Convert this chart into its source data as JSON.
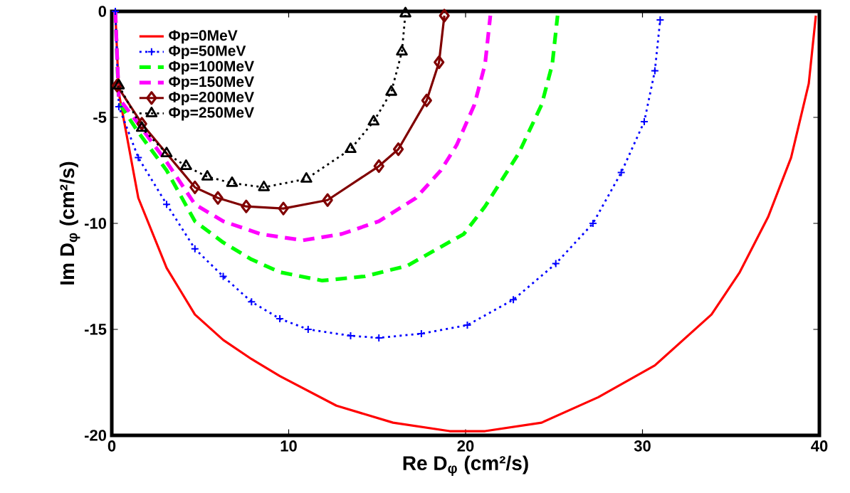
{
  "chart_data": {
    "type": "line",
    "xlabel": "Re D$_{φ}$ (cm²/s)",
    "ylabel": "Im D$_{φ}$ (cm²/s)",
    "xlim": [
      0,
      40
    ],
    "ylim": [
      -20,
      0
    ],
    "xticks": [
      0,
      10,
      20,
      30,
      40
    ],
    "yticks": [
      -20,
      -15,
      -10,
      -5,
      0
    ],
    "grid": false,
    "legend": "top left",
    "series": [
      {
        "name": "Φp=0MeV",
        "color": "#ff0000",
        "line_style": "solid",
        "marker": "none",
        "x": [
          0.2,
          0.4,
          1.5,
          3.1,
          4.7,
          6.3,
          7.9,
          9.5,
          12.7,
          15.9,
          19.1,
          21.1,
          24.3,
          27.5,
          30.7,
          33.9,
          35.5,
          37.1,
          38.4,
          39.4,
          39.8
        ],
        "values": [
          0,
          -3.85,
          -8.8,
          -12.1,
          -14.3,
          -15.5,
          -16.4,
          -17.2,
          -18.6,
          -19.4,
          -19.8,
          -19.8,
          -19.4,
          -18.2,
          -16.7,
          -14.3,
          -12.3,
          -9.7,
          -6.9,
          -3.4,
          -0.2
        ]
      },
      {
        "name": "Φp=50MeV",
        "color": "#0000ff",
        "line_style": "dotted",
        "marker": "cross",
        "x": [
          0.2,
          0.4,
          1.5,
          3.1,
          4.7,
          6.3,
          7.9,
          9.5,
          11.1,
          13.5,
          15.1,
          17.5,
          20.1,
          22.7,
          25.1,
          27.2,
          28.8,
          30.1,
          30.7,
          31.0
        ],
        "values": [
          0,
          -4.5,
          -6.9,
          -9.1,
          -11.2,
          -12.5,
          -13.7,
          -14.5,
          -15.0,
          -15.3,
          -15.4,
          -15.2,
          -14.8,
          -13.6,
          -11.9,
          -10.0,
          -7.6,
          -5.2,
          -2.8,
          -0.4
        ]
      },
      {
        "name": "Φp=100MeV",
        "color": "#00ff00",
        "line_style": "dashed",
        "marker": "none",
        "x": [
          0.2,
          0.4,
          1.5,
          3.1,
          4.7,
          6.3,
          7.9,
          9.5,
          11.9,
          14.3,
          16.7,
          19.9,
          21.1,
          23.0,
          24.3,
          24.9,
          25.2
        ],
        "values": [
          0,
          -4.3,
          -5.7,
          -7.5,
          -9.9,
          -10.9,
          -11.7,
          -12.3,
          -12.7,
          -12.5,
          -12.0,
          -10.5,
          -9.2,
          -6.7,
          -4.4,
          -2.5,
          -0.2
        ]
      },
      {
        "name": "Φp=150MeV",
        "color": "#ff00ff",
        "line_style": "dashed",
        "marker": "none",
        "x": [
          0.2,
          0.4,
          1.5,
          3.1,
          4.7,
          6.3,
          8.4,
          10.8,
          13.0,
          15.1,
          17.2,
          18.6,
          19.5,
          20.5,
          21.1,
          21.4
        ],
        "values": [
          0,
          -4.1,
          -5.3,
          -7.1,
          -9.1,
          -9.9,
          -10.5,
          -10.8,
          -10.5,
          -9.9,
          -8.8,
          -7.5,
          -6.3,
          -4.4,
          -2.5,
          -0.2
        ]
      },
      {
        "name": "Φp=200MeV",
        "color": "#800000",
        "line_style": "solid",
        "marker": "diamond",
        "x": [
          0.3,
          1.7,
          4.7,
          6.0,
          7.6,
          9.7,
          12.2,
          15.1,
          16.2,
          17.8,
          18.5,
          18.8
        ],
        "values": [
          -3.5,
          -5.3,
          -8.3,
          -8.8,
          -9.2,
          -9.3,
          -8.9,
          -7.3,
          -6.5,
          -4.2,
          -2.4,
          -0.2
        ]
      },
      {
        "name": "Φp=250MeV",
        "color": "#000000",
        "line_style": "dotted",
        "marker": "triangle",
        "x": [
          0.4,
          1.7,
          3.1,
          4.2,
          5.4,
          6.8,
          8.6,
          11.0,
          13.5,
          14.8,
          15.8,
          16.4,
          16.6
        ],
        "values": [
          -3.5,
          -5.5,
          -6.7,
          -7.3,
          -7.8,
          -8.1,
          -8.3,
          -7.9,
          -6.5,
          -5.2,
          -3.8,
          -1.9,
          -0.1
        ]
      }
    ]
  }
}
